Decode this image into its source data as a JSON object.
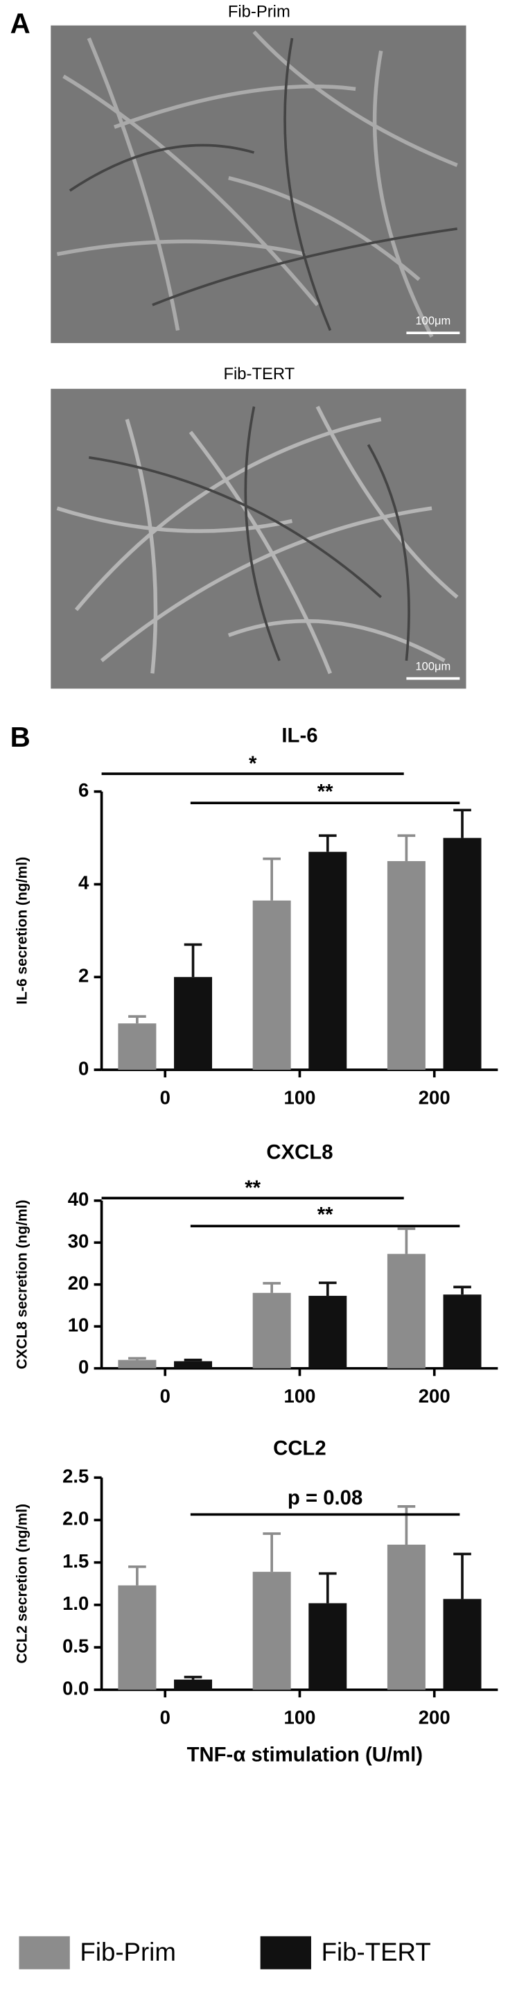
{
  "figure": {
    "panel_a": {
      "label": "A",
      "images": [
        {
          "title": "Fib-Prim",
          "scale_bar": "100μm"
        },
        {
          "title": "Fib-TERT",
          "scale_bar": "100μm"
        }
      ]
    },
    "panel_b": {
      "label": "B"
    }
  },
  "chart_data": [
    {
      "type": "bar",
      "title": "IL-6",
      "ylabel": "IL-6 secretion (ng/ml)",
      "categories": [
        "0",
        "100",
        "200"
      ],
      "series": [
        {
          "name": "Fib-Prim",
          "color": "#8c8c8c",
          "values": [
            1.0,
            3.65,
            4.5
          ],
          "errors": [
            0.15,
            0.9,
            0.55
          ]
        },
        {
          "name": "Fib-TERT",
          "color": "#111111",
          "values": [
            2.0,
            4.7,
            5.0
          ],
          "errors": [
            0.7,
            0.35,
            0.6
          ]
        }
      ],
      "ylim": [
        0,
        6
      ],
      "yticks": [
        0,
        2,
        4,
        6
      ],
      "annotations": [
        {
          "text": "*"
        },
        {
          "text": "**"
        }
      ]
    },
    {
      "type": "bar",
      "title": "CXCL8",
      "ylabel": "CXCL8 secretion (ng/ml)",
      "categories": [
        "0",
        "100",
        "200"
      ],
      "series": [
        {
          "name": "Fib-Prim",
          "color": "#8c8c8c",
          "values": [
            2.0,
            18.0,
            27.3
          ],
          "errors": [
            0.4,
            2.3,
            6.0
          ]
        },
        {
          "name": "Fib-TERT",
          "color": "#111111",
          "values": [
            1.7,
            17.3,
            17.6
          ],
          "errors": [
            0.3,
            3.1,
            1.8
          ]
        }
      ],
      "ylim": [
        0,
        40
      ],
      "yticks": [
        0,
        10,
        20,
        30,
        40
      ],
      "annotations": [
        {
          "text": "**"
        },
        {
          "text": "**"
        }
      ]
    },
    {
      "type": "bar",
      "title": "CCL2",
      "ylabel": "CCL2 secretion (ng/ml)",
      "xlabel": "TNF-α stimulation (U/ml)",
      "categories": [
        "0",
        "100",
        "200"
      ],
      "series": [
        {
          "name": "Fib-Prim",
          "color": "#8c8c8c",
          "values": [
            1.23,
            1.39,
            1.71
          ],
          "errors": [
            0.22,
            0.45,
            0.45
          ]
        },
        {
          "name": "Fib-TERT",
          "color": "#111111",
          "values": [
            0.12,
            1.02,
            1.07
          ],
          "errors": [
            0.03,
            0.35,
            0.53
          ]
        }
      ],
      "ylim": [
        0,
        2.5
      ],
      "yticks": [
        {
          "value": 0,
          "label": "0.0"
        },
        0.5,
        {
          "value": 1,
          "label": "1.0"
        },
        1.5,
        {
          "value": 2,
          "label": "2.0"
        },
        2.5
      ],
      "annotations": [
        {
          "text": "p = 0.08"
        }
      ],
      "legend": "bottom"
    }
  ]
}
